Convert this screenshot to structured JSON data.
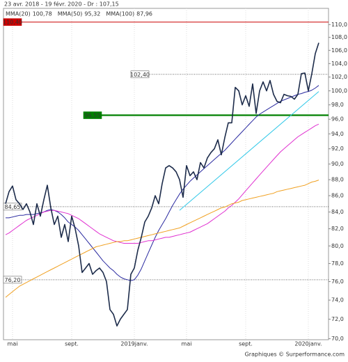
{
  "chart_data": {
    "type": "line",
    "header": "23 avr. 2018 - 19 févr. 2020 - Dr : 107,15",
    "footer": "Graphiques © Surperformance.com",
    "log_scale": true,
    "ylim": [
      69.9,
      112.6
    ],
    "yticks": [
      {
        "value": 70,
        "label": "70,0"
      },
      {
        "value": 72,
        "label": "72,0"
      },
      {
        "value": 74,
        "label": "74,0"
      },
      {
        "value": 76,
        "label": "76,0"
      },
      {
        "value": 78,
        "label": "78,0"
      },
      {
        "value": 80,
        "label": "80,0"
      },
      {
        "value": 82,
        "label": "82,0"
      },
      {
        "value": 84,
        "label": "84,0"
      },
      {
        "value": 86,
        "label": "86,0"
      },
      {
        "value": 88,
        "label": "88,0"
      },
      {
        "value": 90,
        "label": "90,0"
      },
      {
        "value": 92,
        "label": "92,0"
      },
      {
        "value": 94,
        "label": "94,0"
      },
      {
        "value": 96,
        "label": "96,0"
      },
      {
        "value": 98,
        "label": "98,0"
      },
      {
        "value": 100,
        "label": "100,0"
      },
      {
        "value": 102,
        "label": "102,0"
      },
      {
        "value": 104,
        "label": "104,0"
      },
      {
        "value": 106,
        "label": "106,0"
      },
      {
        "value": 108,
        "label": "108,0"
      },
      {
        "value": 110,
        "label": "110,0"
      }
    ],
    "grid": true,
    "categories": [
      null,
      null,
      "mai",
      null,
      null,
      null,
      null,
      null,
      null,
      null,
      null,
      null,
      null,
      null,
      null,
      null,
      null,
      null,
      null,
      "sept.",
      null,
      null,
      null,
      null,
      null,
      null,
      null,
      null,
      null,
      null,
      null,
      null,
      null,
      null,
      null,
      null,
      null,
      "2019janv.",
      null,
      null,
      null,
      null,
      null,
      null,
      null,
      null,
      null,
      null,
      null,
      null,
      null,
      null,
      "mai",
      null,
      null,
      null,
      null,
      null,
      null,
      null,
      null,
      null,
      null,
      null,
      null,
      null,
      null,
      null,
      null,
      "sept.",
      null,
      null,
      null,
      null,
      null,
      null,
      null,
      null,
      null,
      null,
      null,
      null,
      null,
      null,
      null,
      null,
      null,
      "2020janv.",
      null,
      null,
      null
    ],
    "series": [
      {
        "color": "#1c2b4a",
        "width": 1.6,
        "values": [
          85.0,
          86.5,
          87.2,
          85.5,
          85.0,
          84.3,
          85.0,
          84.0,
          82.5,
          85.0,
          83.5,
          85.5,
          87.3,
          84.5,
          82.5,
          83.5,
          81.0,
          82.5,
          80.5,
          83.5,
          82.0,
          80.0,
          77.0,
          77.5,
          78.0,
          76.8,
          77.2,
          77.5,
          77.0,
          76.0,
          73.0,
          72.5,
          71.3,
          72.0,
          72.5,
          73.0,
          76.8,
          77.5,
          79.5,
          81.0,
          82.8,
          83.5,
          84.5,
          86.0,
          85.0,
          87.5,
          89.5,
          89.8,
          89.5,
          89.0,
          88.0,
          85.8,
          89.8,
          88.5,
          89.0,
          88.0,
          90.2,
          89.5,
          90.8,
          91.5,
          92.0,
          93.2,
          91.2,
          93.5,
          95.5,
          95.5,
          100.5,
          100.0,
          98.0,
          99.3,
          97.8,
          101.0,
          96.8,
          100.0,
          101.3,
          100.0,
          101.5,
          99.5,
          98.5,
          98.3,
          99.5,
          99.3,
          99.2,
          98.8,
          99.5,
          102.5,
          102.6,
          100.0,
          102.5,
          105.5,
          107.15
        ]
      },
      {
        "name": "MMA(20)",
        "last_label": "100,78",
        "color": "#2a2aa0",
        "width": 1,
        "values": [
          83.3,
          83.3,
          83.4,
          83.5,
          83.6,
          83.6,
          83.7,
          83.7,
          83.7,
          83.8,
          83.9,
          84.0,
          84.2,
          84.3,
          84.2,
          84.0,
          83.7,
          83.3,
          82.8,
          82.5,
          82.2,
          81.8,
          81.3,
          80.8,
          80.3,
          79.8,
          79.3,
          78.8,
          78.3,
          77.9,
          77.5,
          77.2,
          76.8,
          76.5,
          76.3,
          76.2,
          76.1,
          76.2,
          76.7,
          77.4,
          78.3,
          79.2,
          80.1,
          81.0,
          81.8,
          82.5,
          83.2,
          84.0,
          84.8,
          85.5,
          86.2,
          86.8,
          87.3,
          87.8,
          88.2,
          88.6,
          89.0,
          89.4,
          89.8,
          90.2,
          90.6,
          91.0,
          91.4,
          91.8,
          92.3,
          92.8,
          93.3,
          93.8,
          94.3,
          94.8,
          95.3,
          95.8,
          96.3,
          96.7,
          97.0,
          97.3,
          97.6,
          97.9,
          98.2,
          98.5,
          98.7,
          98.9,
          99.1,
          99.3,
          99.5,
          99.6,
          99.8,
          99.9,
          100.1,
          100.4,
          100.78
        ]
      },
      {
        "name": "MMA(50)",
        "last_label": "95,32",
        "color": "#e030d0",
        "width": 1,
        "values": [
          81.3,
          81.5,
          81.8,
          82.1,
          82.4,
          82.7,
          83.0,
          83.2,
          83.4,
          83.6,
          83.8,
          84.0,
          84.1,
          84.2,
          84.2,
          84.1,
          84.0,
          83.9,
          83.8,
          83.6,
          83.4,
          83.2,
          82.9,
          82.6,
          82.3,
          82.0,
          81.7,
          81.4,
          81.2,
          81.0,
          80.8,
          80.6,
          80.5,
          80.4,
          80.3,
          80.3,
          80.3,
          80.3,
          80.3,
          80.4,
          80.5,
          80.6,
          80.6,
          80.7,
          80.8,
          80.9,
          81.0,
          81.0,
          81.1,
          81.2,
          81.3,
          81.4,
          81.5,
          81.6,
          81.8,
          82.0,
          82.2,
          82.4,
          82.6,
          82.9,
          83.2,
          83.5,
          83.8,
          84.1,
          84.5,
          84.8,
          85.2,
          85.6,
          86.1,
          86.6,
          87.1,
          87.6,
          88.1,
          88.6,
          89.1,
          89.6,
          90.1,
          90.6,
          91.1,
          91.6,
          92.0,
          92.4,
          92.8,
          93.2,
          93.6,
          93.9,
          94.2,
          94.5,
          94.8,
          95.1,
          95.32
        ]
      },
      {
        "name": "MMA(100)",
        "last_label": "87,96",
        "color": "#f0a020",
        "width": 1,
        "values": [
          74.3,
          74.6,
          74.9,
          75.2,
          75.5,
          75.7,
          75.9,
          76.1,
          76.3,
          76.5,
          76.7,
          76.9,
          77.1,
          77.3,
          77.5,
          77.7,
          77.9,
          78.1,
          78.3,
          78.5,
          78.7,
          78.9,
          79.1,
          79.3,
          79.5,
          79.7,
          79.9,
          80.0,
          80.1,
          80.2,
          80.3,
          80.4,
          80.5,
          80.5,
          80.6,
          80.6,
          80.7,
          80.8,
          80.9,
          81.0,
          81.1,
          81.2,
          81.3,
          81.4,
          81.5,
          81.6,
          81.7,
          81.8,
          81.9,
          82.0,
          82.1,
          82.3,
          82.5,
          82.7,
          82.9,
          83.1,
          83.3,
          83.5,
          83.7,
          83.9,
          84.1,
          84.3,
          84.5,
          84.6,
          84.8,
          85.0,
          85.1,
          85.2,
          85.4,
          85.5,
          85.6,
          85.7,
          85.8,
          85.9,
          86.0,
          86.1,
          86.2,
          86.3,
          86.5,
          86.6,
          86.7,
          86.8,
          86.9,
          87.0,
          87.1,
          87.2,
          87.3,
          87.5,
          87.7,
          87.8,
          87.96
        ]
      }
    ],
    "lines": [
      {
        "color": "#30c8e8",
        "x": [
          50,
          90
        ],
        "values": [
          84.2,
          99.9
        ]
      }
    ],
    "levels": [
      {
        "value": 110.4,
        "label": "110,40",
        "color": "#cc0000",
        "style": "solid"
      },
      {
        "value": 102.4,
        "label": "102,40",
        "color": "#666666",
        "style": "dotted"
      },
      {
        "value": 96.55,
        "label": "96,55",
        "color": "#008000",
        "style": "thick"
      },
      {
        "value": 84.65,
        "label": "84,65",
        "color": "#666666",
        "style": "dotted"
      },
      {
        "value": 76.2,
        "label": "76,20",
        "color": "#666666",
        "style": "dotted"
      }
    ]
  }
}
